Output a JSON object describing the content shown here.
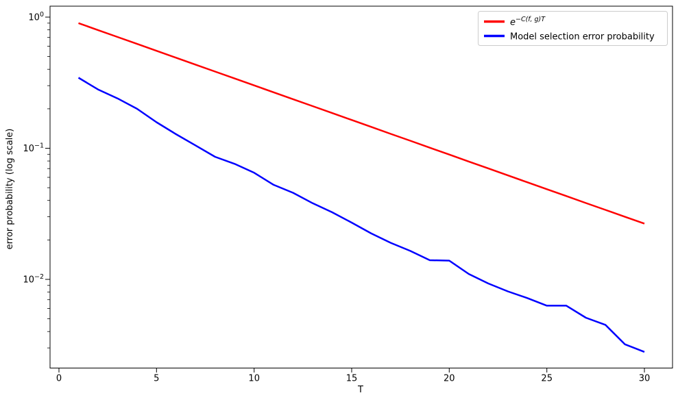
{
  "figure": {
    "xlabel": "T",
    "ylabel": "error probability (log scale)",
    "xticks": [
      0,
      5,
      10,
      15,
      20,
      25,
      30
    ],
    "yticks": [
      {
        "value": 1,
        "label": "10^0"
      },
      {
        "value": 0.1,
        "label": "10^−1"
      },
      {
        "value": 0.01,
        "label": "10^−2"
      }
    ]
  },
  "legend": {
    "items": [
      {
        "key": "exponential-bound",
        "label_base": "e",
        "label_exp": "−C(f, g)T",
        "color": "#ff0000"
      },
      {
        "key": "model-selection-error",
        "label": "Model selection error probability",
        "color": "#0000ff"
      }
    ]
  },
  "chart_data": {
    "type": "line",
    "title": "",
    "xlabel": "T",
    "ylabel": "error probability (log scale)",
    "yscale": "log",
    "grid": false,
    "legend_position": "upper right",
    "xlim": [
      -0.45,
      31.45
    ],
    "ylim": [
      0.0021,
      1.2
    ],
    "x": [
      1,
      2,
      3,
      4,
      5,
      6,
      7,
      8,
      9,
      10,
      11,
      12,
      13,
      14,
      15,
      16,
      17,
      18,
      19,
      20,
      21,
      22,
      23,
      24,
      25,
      26,
      27,
      28,
      29,
      30
    ],
    "series": [
      {
        "name": "e^−C(f,g)T",
        "key": "exponential-bound",
        "color": "#ff0000",
        "values": [
          0.9,
          0.797,
          0.7059,
          0.6251,
          0.5536,
          0.4903,
          0.4342,
          0.3845,
          0.3405,
          0.3016,
          0.2671,
          0.2365,
          0.2094,
          0.1855,
          0.1643,
          0.1455,
          0.1288,
          0.1141,
          0.101,
          0.0895,
          0.0792,
          0.0702,
          0.0621,
          0.055,
          0.0487,
          0.0432,
          0.0382,
          0.0339,
          0.03,
          0.0266
        ]
      },
      {
        "name": "Model selection error probability",
        "key": "model-selection-error",
        "color": "#0000ff",
        "values": [
          0.345,
          0.281,
          0.24,
          0.2,
          0.158,
          0.128,
          0.105,
          0.086,
          0.076,
          0.065,
          0.0526,
          0.0457,
          0.0381,
          0.0325,
          0.0271,
          0.0224,
          0.019,
          0.0165,
          0.014,
          0.0139,
          0.011,
          0.0093,
          0.0081,
          0.0072,
          0.0063,
          0.0063,
          0.0051,
          0.0045,
          0.0032,
          0.0028
        ]
      }
    ]
  }
}
